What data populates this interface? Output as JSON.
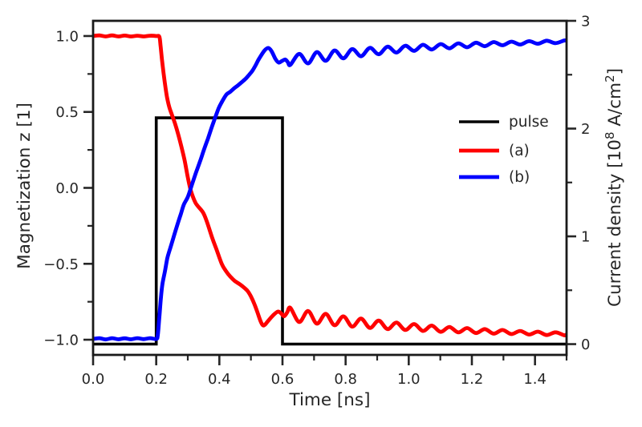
{
  "figure": {
    "background": "#ffffff",
    "title": ""
  },
  "colors": {
    "pulse": "#000000",
    "series_a": "#ff0000",
    "series_b": "#0000ff",
    "spine": "#1a1a1a",
    "tick": "#262626",
    "text": "#262626"
  },
  "axes": {
    "x": {
      "label": "Time [ns]",
      "min": 0,
      "max": 1.5,
      "major_values": [
        0.0,
        0.2,
        0.4,
        0.6,
        0.8,
        1.0,
        1.2,
        1.4
      ],
      "major_labels": [
        "0.0",
        "0.2",
        "0.4",
        "0.6",
        "0.8",
        "1.0",
        "1.2",
        "1.4"
      ],
      "minor_values": [
        0.1,
        0.3,
        0.5,
        0.7,
        0.9,
        1.1,
        1.3,
        1.5
      ]
    },
    "y_left": {
      "label": "Magnetization z [1]",
      "min": -1.1,
      "max": 1.1,
      "major_values": [
        1.0,
        0.5,
        0.0,
        -0.5,
        -1.0
      ],
      "major_labels": [
        "1.0",
        "0.5",
        "0.0",
        "−0.5",
        "−1.0"
      ],
      "minor_values": [
        0.75,
        0.25,
        -0.25,
        -0.75
      ]
    },
    "y_right": {
      "label": "Current density [10⁸ A/cm²]",
      "label_rich": [
        [
          "Current density [10",
          false
        ],
        [
          "8",
          true
        ],
        [
          " A/cm",
          false
        ],
        [
          "2",
          true
        ],
        [
          "]",
          false
        ]
      ],
      "min": -0.1,
      "max": 3.0,
      "major_values": [
        0,
        1,
        2,
        3
      ],
      "major_labels": [
        "0",
        "1",
        "2",
        "3"
      ],
      "minor_values": [
        0.5,
        1.5,
        2.5
      ]
    }
  },
  "legend": {
    "entries": [
      {
        "label": "pulse",
        "color": "#000000"
      },
      {
        "label": "(a)",
        "color": "#ff0000"
      },
      {
        "label": "(b)",
        "color": "#0000ff"
      }
    ]
  },
  "chart_data": {
    "type": "line",
    "title": "",
    "xlabel": "Time [ns]",
    "ylabel_left": "Magnetization z [1]",
    "ylabel_right": "Current density [10^8 A/cm^2]",
    "x_range": [
      0,
      1.5
    ],
    "y_left_range": [
      -1.1,
      1.1
    ],
    "y_right_range": [
      -0.1,
      3.0
    ],
    "grid": false,
    "legend_frame": false,
    "series": [
      {
        "name": "pulse",
        "axis": "right",
        "color": "#000000",
        "smooth": false,
        "points": [
          [
            0,
            0
          ],
          [
            0.2,
            0
          ],
          [
            0.2,
            2.1
          ],
          [
            0.6,
            2.1
          ],
          [
            0.6,
            0
          ],
          [
            1.5,
            0
          ]
        ]
      },
      {
        "name": "(a)",
        "axis": "left",
        "color": "#ff0000",
        "smooth": true,
        "points": [
          [
            0.0,
            1.0
          ],
          [
            0.02,
            1.004
          ],
          [
            0.04,
            0.997
          ],
          [
            0.06,
            1.004
          ],
          [
            0.08,
            0.997
          ],
          [
            0.1,
            1.003
          ],
          [
            0.12,
            0.997
          ],
          [
            0.14,
            1.002
          ],
          [
            0.16,
            0.997
          ],
          [
            0.18,
            1.002
          ],
          [
            0.2,
            1.0
          ],
          [
            0.21,
            0.995
          ],
          [
            0.214,
            0.93
          ],
          [
            0.218,
            0.85
          ],
          [
            0.223,
            0.76
          ],
          [
            0.228,
            0.68
          ],
          [
            0.234,
            0.6
          ],
          [
            0.241,
            0.535
          ],
          [
            0.25,
            0.48
          ],
          [
            0.26,
            0.42
          ],
          [
            0.27,
            0.35
          ],
          [
            0.28,
            0.27
          ],
          [
            0.29,
            0.18
          ],
          [
            0.3,
            0.07
          ],
          [
            0.31,
            -0.02
          ],
          [
            0.325,
            -0.1
          ],
          [
            0.3475,
            -0.16
          ],
          [
            0.36,
            -0.22
          ],
          [
            0.3775,
            -0.33
          ],
          [
            0.39,
            -0.4
          ],
          [
            0.4075,
            -0.5
          ],
          [
            0.42,
            -0.545
          ],
          [
            0.435,
            -0.585
          ],
          [
            0.45,
            -0.615
          ],
          [
            0.465,
            -0.635
          ],
          [
            0.48,
            -0.66
          ],
          [
            0.49,
            -0.68
          ],
          [
            0.5,
            -0.715
          ],
          [
            0.51,
            -0.76
          ],
          [
            0.52,
            -0.815
          ],
          [
            0.53,
            -0.875
          ],
          [
            0.538,
            -0.905
          ],
          [
            0.545,
            -0.9
          ],
          [
            0.555,
            -0.875
          ],
          [
            0.57,
            -0.84
          ],
          [
            0.585,
            -0.815
          ],
          [
            0.595,
            -0.825
          ],
          [
            0.605,
            -0.845
          ],
          [
            0.615,
            -0.82
          ],
          [
            0.625,
            -0.79
          ],
          [
            0.653,
            -0.883
          ],
          [
            0.681,
            -0.811
          ],
          [
            0.709,
            -0.894
          ],
          [
            0.737,
            -0.83
          ],
          [
            0.765,
            -0.905
          ],
          [
            0.793,
            -0.846
          ],
          [
            0.821,
            -0.914
          ],
          [
            0.849,
            -0.861
          ],
          [
            0.877,
            -0.922
          ],
          [
            0.905,
            -0.874
          ],
          [
            0.933,
            -0.93
          ],
          [
            0.961,
            -0.887
          ],
          [
            0.989,
            -0.936
          ],
          [
            1.017,
            -0.897
          ],
          [
            1.045,
            -0.942
          ],
          [
            1.073,
            -0.907
          ],
          [
            1.101,
            -0.948
          ],
          [
            1.129,
            -0.916
          ],
          [
            1.157,
            -0.952
          ],
          [
            1.185,
            -0.923
          ],
          [
            1.213,
            -0.956
          ],
          [
            1.241,
            -0.93
          ],
          [
            1.269,
            -0.96
          ],
          [
            1.297,
            -0.936
          ],
          [
            1.325,
            -0.963
          ],
          [
            1.353,
            -0.942
          ],
          [
            1.381,
            -0.966
          ],
          [
            1.409,
            -0.947
          ],
          [
            1.437,
            -0.969
          ],
          [
            1.465,
            -0.951
          ],
          [
            1.493,
            -0.971
          ],
          [
            1.5,
            -0.965
          ]
        ]
      },
      {
        "name": "(b)",
        "axis": "left",
        "color": "#0000ff",
        "smooth": true,
        "points": [
          [
            0.0,
            -0.995
          ],
          [
            0.02,
            -0.99
          ],
          [
            0.04,
            -0.998
          ],
          [
            0.06,
            -0.99
          ],
          [
            0.08,
            -0.997
          ],
          [
            0.1,
            -0.991
          ],
          [
            0.12,
            -0.997
          ],
          [
            0.14,
            -0.99
          ],
          [
            0.16,
            -0.996
          ],
          [
            0.18,
            -0.99
          ],
          [
            0.2,
            -0.995
          ],
          [
            0.205,
            -0.97
          ],
          [
            0.21,
            -0.85
          ],
          [
            0.215,
            -0.72
          ],
          [
            0.22,
            -0.63
          ],
          [
            0.2275,
            -0.55
          ],
          [
            0.235,
            -0.465
          ],
          [
            0.2425,
            -0.41
          ],
          [
            0.25,
            -0.36
          ],
          [
            0.2585,
            -0.3
          ],
          [
            0.2675,
            -0.24
          ],
          [
            0.2775,
            -0.175
          ],
          [
            0.2875,
            -0.11
          ],
          [
            0.3,
            -0.06
          ],
          [
            0.313,
            0.02
          ],
          [
            0.326,
            0.1
          ],
          [
            0.339,
            0.175
          ],
          [
            0.351,
            0.25
          ],
          [
            0.364,
            0.325
          ],
          [
            0.376,
            0.4
          ],
          [
            0.388,
            0.47
          ],
          [
            0.398,
            0.525
          ],
          [
            0.409,
            0.57
          ],
          [
            0.4225,
            0.615
          ],
          [
            0.434,
            0.632
          ],
          [
            0.4465,
            0.655
          ],
          [
            0.459,
            0.675
          ],
          [
            0.4715,
            0.697
          ],
          [
            0.484,
            0.72
          ],
          [
            0.4945,
            0.745
          ],
          [
            0.505,
            0.772
          ],
          [
            0.5155,
            0.81
          ],
          [
            0.526,
            0.851
          ],
          [
            0.5425,
            0.903
          ],
          [
            0.555,
            0.921
          ],
          [
            0.5655,
            0.9
          ],
          [
            0.5775,
            0.85
          ],
          [
            0.588,
            0.825
          ],
          [
            0.598,
            0.835
          ],
          [
            0.609,
            0.845
          ],
          [
            0.617,
            0.828
          ],
          [
            0.625,
            0.81
          ],
          [
            0.653,
            0.882
          ],
          [
            0.681,
            0.82
          ],
          [
            0.709,
            0.894
          ],
          [
            0.737,
            0.837
          ],
          [
            0.765,
            0.905
          ],
          [
            0.793,
            0.853
          ],
          [
            0.821,
            0.914
          ],
          [
            0.849,
            0.867
          ],
          [
            0.877,
            0.922
          ],
          [
            0.905,
            0.88
          ],
          [
            0.933,
            0.93
          ],
          [
            0.961,
            0.891
          ],
          [
            0.989,
            0.936
          ],
          [
            1.017,
            0.902
          ],
          [
            1.045,
            0.942
          ],
          [
            1.073,
            0.911
          ],
          [
            1.101,
            0.947
          ],
          [
            1.129,
            0.919
          ],
          [
            1.157,
            0.952
          ],
          [
            1.185,
            0.926
          ],
          [
            1.213,
            0.956
          ],
          [
            1.241,
            0.933
          ],
          [
            1.269,
            0.96
          ],
          [
            1.297,
            0.939
          ],
          [
            1.325,
            0.963
          ],
          [
            1.353,
            0.944
          ],
          [
            1.381,
            0.966
          ],
          [
            1.409,
            0.949
          ],
          [
            1.437,
            0.969
          ],
          [
            1.465,
            0.953
          ],
          [
            1.493,
            0.971
          ],
          [
            1.5,
            0.968
          ]
        ]
      }
    ]
  }
}
